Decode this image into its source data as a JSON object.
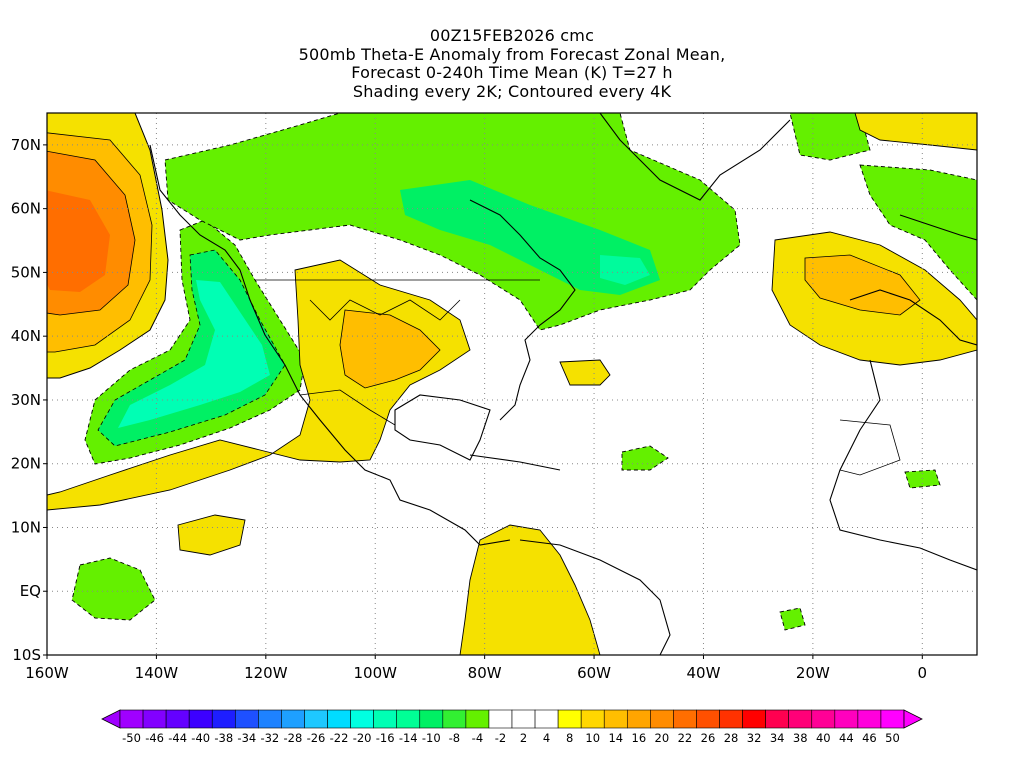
{
  "title": {
    "line1": "00Z15FEB2026 cmc",
    "line2": "500mb Theta-E Anomaly from Forecast Zonal Mean,",
    "line3": "Forecast 0-240h Time Mean (K) T=27 h",
    "line4": "Shading every 2K; Contoured every 4K"
  },
  "map": {
    "projection": "cylindrical equidistant",
    "lon_range": [
      -160,
      10
    ],
    "lat_range": [
      -10,
      75
    ],
    "grid": "dotted",
    "lat_ticks": [
      "70N",
      "60N",
      "50N",
      "40N",
      "30N",
      "20N",
      "10N",
      "EQ",
      "10S"
    ],
    "lat_values": [
      70,
      60,
      50,
      40,
      30,
      20,
      10,
      0,
      -10
    ],
    "lon_ticks": [
      "160W",
      "140W",
      "120W",
      "100W",
      "80W",
      "60W",
      "40W",
      "20W",
      "0"
    ],
    "lon_values": [
      -160,
      -140,
      -120,
      -100,
      -80,
      -60,
      -40,
      -20,
      0
    ]
  },
  "colorbar": {
    "labels": [
      "-50",
      "-46",
      "-44",
      "-40",
      "-38",
      "-34",
      "-32",
      "-28",
      "-26",
      "-22",
      "-20",
      "-16",
      "-14",
      "-10",
      "-8",
      "-4",
      "-2",
      "2",
      "4",
      "8",
      "10",
      "14",
      "16",
      "20",
      "22",
      "26",
      "28",
      "32",
      "34",
      "38",
      "40",
      "44",
      "46",
      "50"
    ],
    "colors": [
      "#a000ff",
      "#8200ff",
      "#6400ff",
      "#3c00ff",
      "#1e1eff",
      "#1e50ff",
      "#1e82ff",
      "#1ea0ff",
      "#1ec8ff",
      "#00dcff",
      "#00ffe1",
      "#00ffb4",
      "#00ff96",
      "#00f064",
      "#32f032",
      "#64f000",
      "#ffffff",
      "#ffffff",
      "#ffffff",
      "#ffff00",
      "#ffd700",
      "#ffbe00",
      "#ffa500",
      "#ff8c00",
      "#ff6e00",
      "#ff5000",
      "#ff3200",
      "#ff0000",
      "#ff0050",
      "#ff0078",
      "#ff0096",
      "#ff00be",
      "#ff00dc",
      "#ff00ff"
    ]
  },
  "palette": {
    "positive_weak": "#f5e100",
    "positive_mid": "#ffbe00",
    "positive_strong": "#ff8c00",
    "negative_weak": "#64f000",
    "negative_mid": "#00f064",
    "negative_strong": "#00ffb4"
  }
}
